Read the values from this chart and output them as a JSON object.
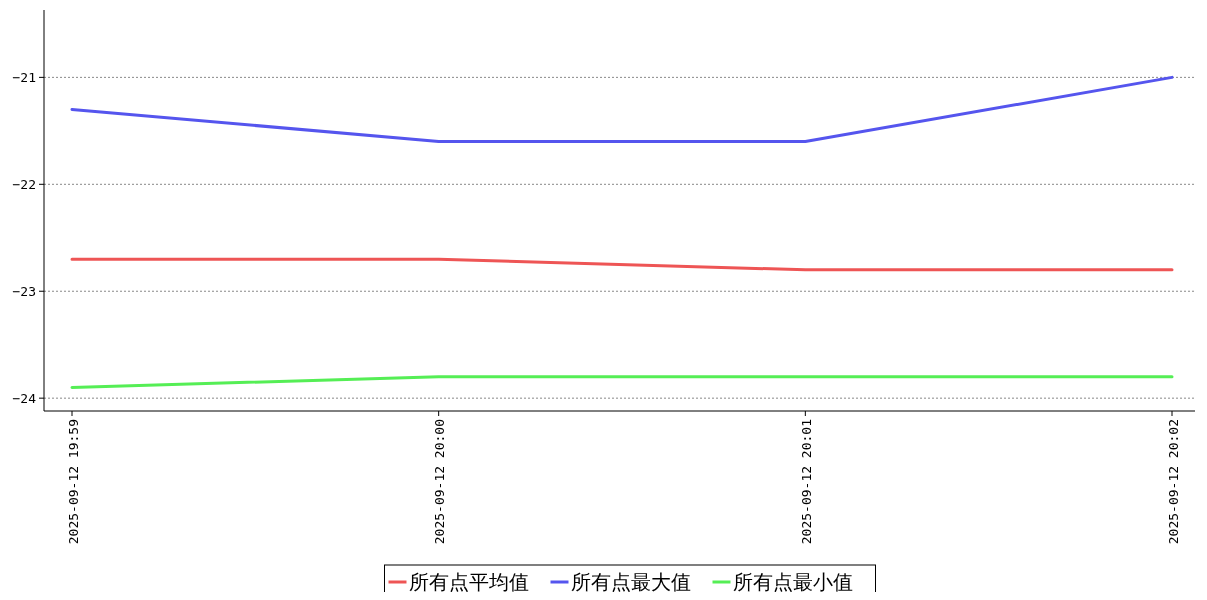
{
  "chart_data": {
    "type": "line",
    "categories": [
      "2025-09-12 19:59",
      "2025-09-12 20:00",
      "2025-09-12 20:01",
      "2025-09-12 20:02"
    ],
    "series": [
      {
        "name": "所有点平均值",
        "color": "#ee5555",
        "values": [
          -22.7,
          -22.7,
          -22.8,
          -22.8
        ]
      },
      {
        "name": "所有点最大值",
        "color": "#5555ee",
        "values": [
          -21.3,
          -21.6,
          -21.6,
          -21.0
        ]
      },
      {
        "name": "所有点最小值",
        "color": "#55ee55",
        "values": [
          -23.9,
          -23.8,
          -23.8,
          -23.8
        ]
      }
    ],
    "ylim": [
      -24.12,
      -20.37
    ],
    "yticks": [
      {
        "value": -24,
        "label": "−24"
      },
      {
        "value": -23,
        "label": "−23"
      },
      {
        "value": -22,
        "label": "−22"
      },
      {
        "value": -21,
        "label": "−21"
      }
    ],
    "grid": "y",
    "legend": "bottom",
    "marker": "none",
    "line_style": "solid"
  }
}
